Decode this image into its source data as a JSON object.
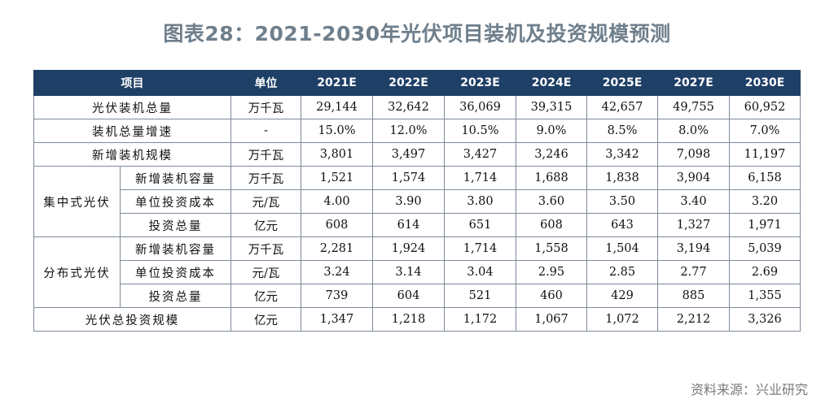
{
  "title": "图表28：2021-2030年光伏项目装机及投资规模预测",
  "table": {
    "header": {
      "item": "项目",
      "unit": "单位",
      "years": [
        "2021E",
        "2022E",
        "2023E",
        "2024E",
        "2025E",
        "2027E",
        "2030E"
      ]
    },
    "rows": [
      {
        "label": "光伏装机总量",
        "unit": "万千瓦",
        "values": [
          "29,144",
          "32,642",
          "36,069",
          "39,315",
          "42,657",
          "49,755",
          "60,952"
        ]
      },
      {
        "label": "装机总量增速",
        "unit": "-",
        "values": [
          "15.0%",
          "12.0%",
          "10.5%",
          "9.0%",
          "8.5%",
          "8.0%",
          "7.0%"
        ]
      },
      {
        "label": "新增装机规模",
        "unit": "万千瓦",
        "values": [
          "3,801",
          "3,497",
          "3,427",
          "3,246",
          "3,342",
          "7,098",
          "11,197"
        ]
      }
    ],
    "groups": [
      {
        "name": "集中式光伏",
        "rows": [
          {
            "label": "新增装机容量",
            "unit": "万千瓦",
            "values": [
              "1,521",
              "1,574",
              "1,714",
              "1,688",
              "1,838",
              "3,904",
              "6,158"
            ]
          },
          {
            "label": "单位投资成本",
            "unit": "元/瓦",
            "values": [
              "4.00",
              "3.90",
              "3.80",
              "3.60",
              "3.50",
              "3.40",
              "3.20"
            ]
          },
          {
            "label": "投资总量",
            "unit": "亿元",
            "values": [
              "608",
              "614",
              "651",
              "608",
              "643",
              "1,327",
              "1,971"
            ]
          }
        ]
      },
      {
        "name": "分布式光伏",
        "rows": [
          {
            "label": "新增装机容量",
            "unit": "万千瓦",
            "values": [
              "2,281",
              "1,924",
              "1,714",
              "1,558",
              "1,504",
              "3,194",
              "5,039"
            ]
          },
          {
            "label": "单位投资成本",
            "unit": "元/瓦",
            "values": [
              "3.24",
              "3.14",
              "3.04",
              "2.95",
              "2.85",
              "2.77",
              "2.69"
            ]
          },
          {
            "label": "投资总量",
            "unit": "亿元",
            "values": [
              "739",
              "604",
              "521",
              "460",
              "429",
              "885",
              "1,355"
            ]
          }
        ]
      }
    ],
    "footer_row": {
      "label": "光伏总投资规模",
      "unit": "亿元",
      "values": [
        "1,347",
        "1,218",
        "1,172",
        "1,067",
        "1,072",
        "2,212",
        "3,326"
      ]
    }
  },
  "source": "资料来源：兴业研究"
}
